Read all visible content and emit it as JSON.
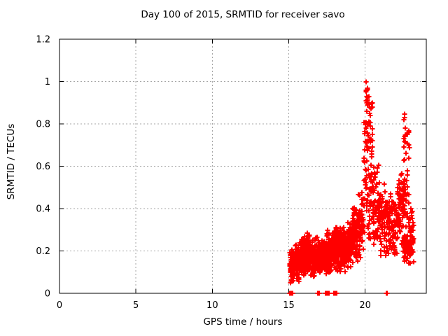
{
  "chart_data": {
    "type": "scatter",
    "title": "Day 100 of 2015, SRMTID for receiver savo",
    "xlabel": "GPS time / hours",
    "ylabel": "SRMTID / TECUs",
    "xlim": [
      0,
      24
    ],
    "ylim": [
      0,
      1.2
    ],
    "xticks": [
      0,
      5,
      10,
      15,
      20
    ],
    "xtick_labels": [
      "0",
      "5",
      "10",
      "15",
      "20"
    ],
    "yticks": [
      0,
      0.2,
      0.4,
      0.6,
      0.8,
      1,
      1.2
    ],
    "ytick_labels": [
      "0",
      "0.2",
      "0.4",
      "0.6",
      "0.8",
      "1",
      "1.2"
    ],
    "grid": true,
    "grid_color": "#a6a6a6",
    "frame_color": "#000000",
    "background_color": "#ffffff",
    "legend": "none",
    "marker": {
      "shape": "plus",
      "size": 7,
      "stroke_width": 2,
      "color": "#ff0000"
    },
    "series_name": "SRMTID",
    "x_data_range": [
      15.05,
      23.2
    ],
    "y_max_point": [
      20.05,
      1.0
    ],
    "notable_points": [
      [
        20.05,
        1.0
      ],
      [
        20.07,
        0.96
      ],
      [
        20.12,
        0.9
      ],
      [
        20.25,
        0.93
      ],
      [
        20.28,
        0.88
      ],
      [
        20.1,
        0.86
      ],
      [
        20.32,
        0.84
      ],
      [
        22.6,
        0.845
      ],
      [
        22.58,
        0.83
      ],
      [
        22.63,
        0.78
      ],
      [
        22.56,
        0.74
      ]
    ],
    "zero_line_x": [
      15.08,
      15.11,
      15.14,
      15.17,
      15.2,
      15.23,
      15.26,
      15.13,
      16.9,
      16.97,
      17.42,
      17.47,
      17.52,
      17.57,
      17.62,
      17.5,
      17.97,
      18.02,
      18.07,
      18.12,
      18.16,
      18.05,
      21.37,
      21.43
    ],
    "clusters": [
      {
        "x0": 15.05,
        "x1": 15.35,
        "n": 70,
        "y0": 0.04,
        "y1": 0.21,
        "dist": "tri"
      },
      {
        "x0": 15.35,
        "x1": 15.7,
        "n": 75,
        "y0": 0.05,
        "y1": 0.24,
        "dist": "tri"
      },
      {
        "x0": 15.7,
        "x1": 16.05,
        "n": 80,
        "y0": 0.07,
        "y1": 0.26,
        "dist": "tri"
      },
      {
        "x0": 16.05,
        "x1": 16.4,
        "n": 85,
        "y0": 0.08,
        "y1": 0.3,
        "dist": "tri"
      },
      {
        "x0": 16.4,
        "x1": 16.75,
        "n": 85,
        "y0": 0.07,
        "y1": 0.27,
        "dist": "tri"
      },
      {
        "x0": 16.75,
        "x1": 17.1,
        "n": 85,
        "y0": 0.08,
        "y1": 0.28,
        "dist": "tri"
      },
      {
        "x0": 17.1,
        "x1": 17.45,
        "n": 85,
        "y0": 0.09,
        "y1": 0.28,
        "dist": "tri"
      },
      {
        "x0": 17.45,
        "x1": 17.8,
        "n": 85,
        "y0": 0.08,
        "y1": 0.3,
        "dist": "tri"
      },
      {
        "x0": 17.8,
        "x1": 18.15,
        "n": 85,
        "y0": 0.1,
        "y1": 0.32,
        "dist": "tri"
      },
      {
        "x0": 18.15,
        "x1": 18.5,
        "n": 85,
        "y0": 0.1,
        "y1": 0.35,
        "dist": "tri"
      },
      {
        "x0": 18.5,
        "x1": 18.85,
        "n": 80,
        "y0": 0.1,
        "y1": 0.33,
        "dist": "tri"
      },
      {
        "x0": 18.85,
        "x1": 19.2,
        "n": 75,
        "y0": 0.12,
        "y1": 0.36,
        "dist": "tri"
      },
      {
        "x0": 19.2,
        "x1": 19.55,
        "n": 70,
        "y0": 0.13,
        "y1": 0.42,
        "dist": "tri"
      },
      {
        "x0": 19.55,
        "x1": 19.9,
        "n": 60,
        "y0": 0.15,
        "y1": 0.52,
        "dist": "tri"
      },
      {
        "x0": 19.9,
        "x1": 20.2,
        "n": 50,
        "y0": 0.2,
        "y1": 0.97,
        "dist": "uniform",
        "cols": 4
      },
      {
        "x0": 20.2,
        "x1": 20.5,
        "n": 55,
        "y0": 0.25,
        "y1": 0.92,
        "dist": "uniform",
        "cols": 4
      },
      {
        "x0": 20.5,
        "x1": 20.95,
        "n": 65,
        "y0": 0.2,
        "y1": 0.62,
        "dist": "tri"
      },
      {
        "x0": 20.95,
        "x1": 21.5,
        "n": 80,
        "y0": 0.15,
        "y1": 0.55,
        "dist": "tri"
      },
      {
        "x0": 21.5,
        "x1": 22.1,
        "n": 85,
        "y0": 0.15,
        "y1": 0.5,
        "dist": "tri"
      },
      {
        "x0": 22.1,
        "x1": 22.5,
        "n": 60,
        "y0": 0.2,
        "y1": 0.6,
        "dist": "tri"
      },
      {
        "x0": 22.5,
        "x1": 22.9,
        "n": 60,
        "y0": 0.2,
        "y1": 0.82,
        "dist": "uniform",
        "cols": 4
      },
      {
        "x0": 22.5,
        "x1": 23.0,
        "n": 45,
        "y0": 0.13,
        "y1": 0.3,
        "dist": "tri"
      },
      {
        "x0": 22.9,
        "x1": 23.2,
        "n": 40,
        "y0": 0.12,
        "y1": 0.42,
        "dist": "tri"
      }
    ],
    "seed": 7
  }
}
